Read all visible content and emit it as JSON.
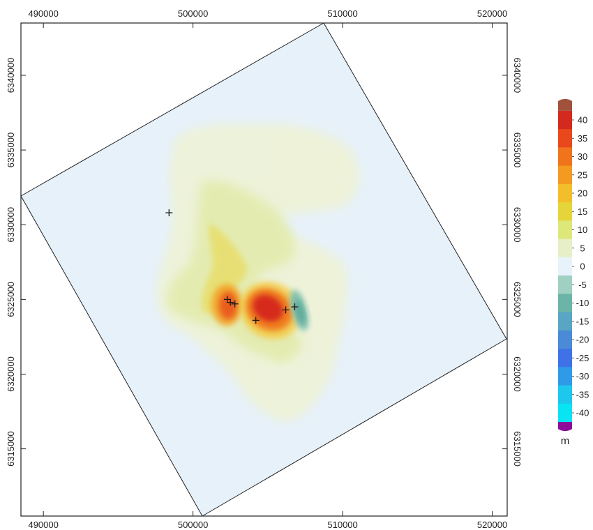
{
  "map": {
    "x_ticks": [
      "490000",
      "500000",
      "510000",
      "520000"
    ],
    "y_ticks": [
      "6340000",
      "6335000",
      "6330000",
      "6325000",
      "6320000",
      "6315000"
    ],
    "x_range": [
      488500,
      521000
    ],
    "y_range": [
      6310500,
      6343500
    ],
    "domain_corners": [
      [
        508800,
        6343500
      ],
      [
        521000,
        6321000
      ],
      [
        500600,
        6310500
      ],
      [
        488500,
        6331800
      ]
    ],
    "markers": [
      [
        498400,
        6330800
      ],
      [
        502300,
        6325000
      ],
      [
        502500,
        6324800
      ],
      [
        502800,
        6324700
      ],
      [
        504200,
        6323600
      ],
      [
        506200,
        6324300
      ],
      [
        506800,
        6324500
      ]
    ]
  },
  "colorbar": {
    "unit": "m",
    "labels": [
      "40",
      "35",
      "30",
      "25",
      "20",
      "15",
      "10",
      "5",
      "0",
      "-5",
      "-10",
      "-15",
      "-20",
      "-25",
      "-30",
      "-35",
      "-40"
    ],
    "colors": [
      "#d42a1e",
      "#e8481c",
      "#f0741c",
      "#f39a22",
      "#f2be2c",
      "#e6d53a",
      "#dde77a",
      "#e6efc6",
      "#e8f2fa",
      "#9fd0c2",
      "#6bb5a8",
      "#58a6c4",
      "#4a8ad6",
      "#3e72e6",
      "#2f9be8",
      "#1ec8ec",
      "#08e4f2"
    ],
    "over_color": "#a0523c",
    "under_color": "#8e0a98"
  },
  "colors": {
    "background": "#e7f1fa",
    "markers": "#1a1a1a"
  }
}
